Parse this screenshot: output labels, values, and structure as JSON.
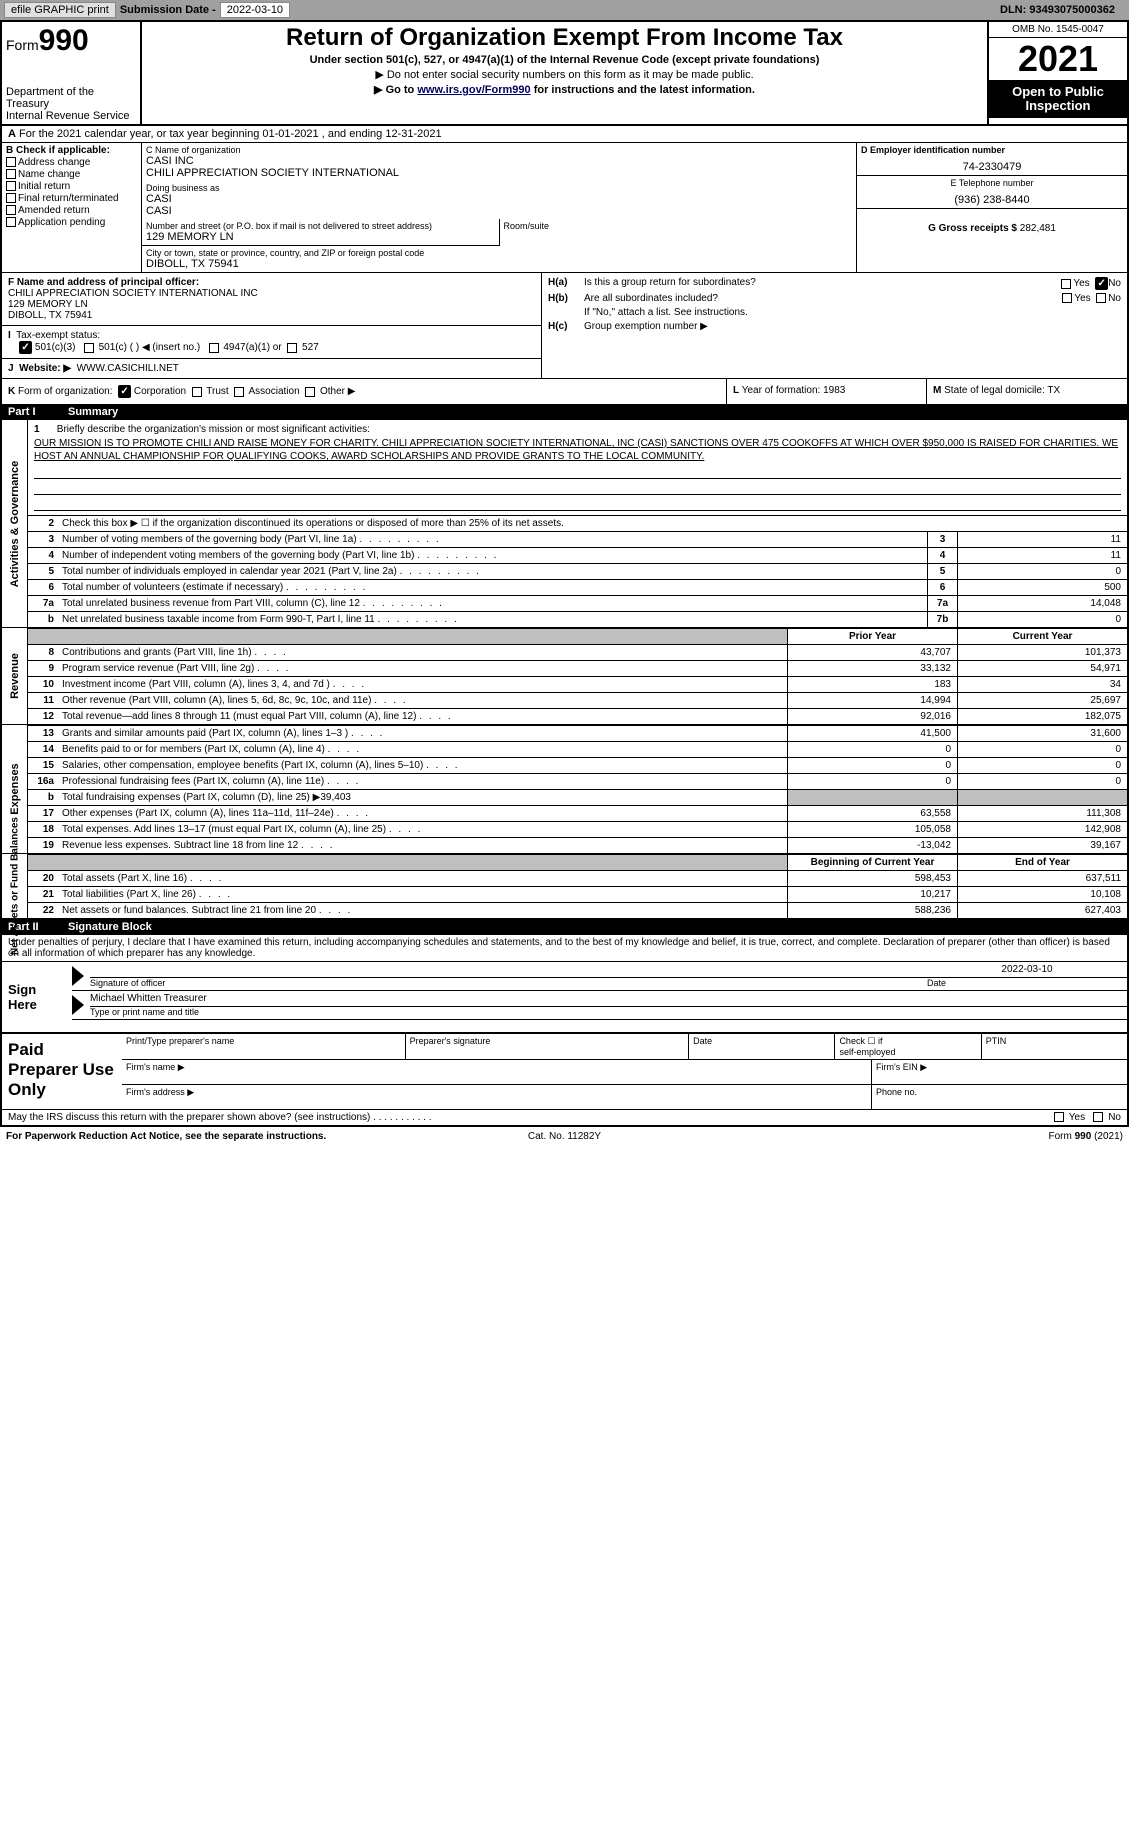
{
  "topbar": {
    "efile_label": "efile GRAPHIC print",
    "submission_label": "Submission Date -",
    "submission_date": "2022-03-10",
    "dln_label": "DLN:",
    "dln_value": "93493075000362"
  },
  "header": {
    "form_word": "Form",
    "form_num": "990",
    "dept1": "Department of the Treasury",
    "dept2": "Internal Revenue Service",
    "title": "Return of Organization Exempt From Income Tax",
    "sub1": "Under section 501(c), 527, or 4947(a)(1) of the Internal Revenue Code (except private foundations)",
    "sub2_pre": "▶ Do not enter social security numbers on this form as it may be made public.",
    "sub3_pre": "▶ Go to ",
    "sub3_link": "www.irs.gov/Form990",
    "sub3_post": " for instructions and the latest information.",
    "omb": "OMB No. 1545-0047",
    "year": "2021",
    "inspect1": "Open to Public",
    "inspect2": "Inspection"
  },
  "row_a": {
    "prefix": "A",
    "text": "For the 2021 calendar year, or tax year beginning 01-01-2021    , and ending 12-31-2021"
  },
  "b": {
    "hdr": "B Check if applicable:",
    "opts": [
      "Address change",
      "Name change",
      "Initial return",
      "Final return/terminated",
      "Amended return",
      "Application pending"
    ]
  },
  "c": {
    "name_lbl": "C Name of organization",
    "name1": "CASI INC",
    "name2": "CHILI APPRECIATION SOCIETY INTERNATIONAL",
    "dba_lbl": "Doing business as",
    "dba1": "CASI",
    "dba2": "CASI",
    "street_lbl": "Number and street (or P.O. box if mail is not delivered to street address)",
    "room_lbl": "Room/suite",
    "street": "129 MEMORY LN",
    "city_lbl": "City or town, state or province, country, and ZIP or foreign postal code",
    "city": "DIBOLL, TX  75941"
  },
  "d": {
    "lbl": "D Employer identification number",
    "val": "74-2330479"
  },
  "e": {
    "lbl": "E Telephone number",
    "val": "(936) 238-8440"
  },
  "g": {
    "lbl": "G Gross receipts $",
    "val": "282,481"
  },
  "f": {
    "lbl": "F Name and address of principal officer:",
    "line1": "CHILI APPRECIATION SOCIETY INTERNATIONAL INC",
    "line2": "129 MEMORY LN",
    "line3": "DIBOLL, TX  75941"
  },
  "h": {
    "a_lbl": "H(a)",
    "a_txt": "Is this a group return for subordinates?",
    "a_yes": "Yes",
    "a_no": "No",
    "b_lbl": "H(b)",
    "b_txt": "Are all subordinates included?",
    "b_yes": "Yes",
    "b_no": "No",
    "b_note": "If \"No,\" attach a list. See instructions.",
    "c_lbl": "H(c)",
    "c_txt": "Group exemption number ▶"
  },
  "i": {
    "lbl": "I",
    "txt": "Tax-exempt status:",
    "o1": "501(c)(3)",
    "o2": "501(c) (  ) ◀ (insert no.)",
    "o3": "4947(a)(1) or",
    "o4": "527"
  },
  "j": {
    "lbl": "J",
    "txt": "Website: ▶",
    "val": "WWW.CASICHILI.NET"
  },
  "k": {
    "lbl": "K",
    "txt": "Form of organization:",
    "o1": "Corporation",
    "o2": "Trust",
    "o3": "Association",
    "o4": "Other ▶"
  },
  "l": {
    "lbl": "L",
    "txt": "Year of formation:",
    "val": "1983"
  },
  "m": {
    "lbl": "M",
    "txt": "State of legal domicile:",
    "val": "TX"
  },
  "part1": {
    "num": "Part I",
    "title": "Summary"
  },
  "mission": {
    "num": "1",
    "lbl": "Briefly describe the organization's mission or most significant activities:",
    "body": "OUR MISSION IS TO PROMOTE CHILI AND RAISE MONEY FOR CHARITY. CHILI APPRECIATION SOCIETY INTERNATIONAL, INC (CASI) SANCTIONS OVER 475 COOKOFFS AT WHICH OVER $950,000 IS RAISED FOR CHARITIES. WE HOST AN ANNUAL CHAMPIONSHIP FOR QUALIFYING COOKS, AWARD SCHOLARSHIPS AND PROVIDE GRANTS TO THE LOCAL COMMUNITY."
  },
  "tabs": {
    "gov": "Activities & Governance",
    "rev": "Revenue",
    "exp": "Expenses",
    "nab": "Net Assets or Fund Balances"
  },
  "lines_gov": [
    {
      "n": "2",
      "d": "Check this box ▶ ☐  if the organization discontinued its operations or disposed of more than 25% of its net assets."
    },
    {
      "n": "3",
      "d": "Number of voting members of the governing body (Part VI, line 1a)",
      "box": "3",
      "v": "11"
    },
    {
      "n": "4",
      "d": "Number of independent voting members of the governing body (Part VI, line 1b)",
      "box": "4",
      "v": "11"
    },
    {
      "n": "5",
      "d": "Total number of individuals employed in calendar year 2021 (Part V, line 2a)",
      "box": "5",
      "v": "0"
    },
    {
      "n": "6",
      "d": "Total number of volunteers (estimate if necessary)",
      "box": "6",
      "v": "500"
    },
    {
      "n": "7a",
      "d": "Total unrelated business revenue from Part VIII, column (C), line 12",
      "box": "7a",
      "v": "14,048"
    },
    {
      "n": "b",
      "d": "Net unrelated business taxable income from Form 990-T, Part I, line 11",
      "box": "7b",
      "v": "0"
    }
  ],
  "col_hdrs": {
    "prior": "Prior Year",
    "curr": "Current Year"
  },
  "lines_rev": [
    {
      "n": "8",
      "d": "Contributions and grants (Part VIII, line 1h)",
      "p": "43,707",
      "c": "101,373"
    },
    {
      "n": "9",
      "d": "Program service revenue (Part VIII, line 2g)",
      "p": "33,132",
      "c": "54,971"
    },
    {
      "n": "10",
      "d": "Investment income (Part VIII, column (A), lines 3, 4, and 7d )",
      "p": "183",
      "c": "34"
    },
    {
      "n": "11",
      "d": "Other revenue (Part VIII, column (A), lines 5, 6d, 8c, 9c, 10c, and 11e)",
      "p": "14,994",
      "c": "25,697"
    },
    {
      "n": "12",
      "d": "Total revenue—add lines 8 through 11 (must equal Part VIII, column (A), line 12)",
      "p": "92,016",
      "c": "182,075"
    }
  ],
  "lines_exp": [
    {
      "n": "13",
      "d": "Grants and similar amounts paid (Part IX, column (A), lines 1–3 )",
      "p": "41,500",
      "c": "31,600"
    },
    {
      "n": "14",
      "d": "Benefits paid to or for members (Part IX, column (A), line 4)",
      "p": "0",
      "c": "0"
    },
    {
      "n": "15",
      "d": "Salaries, other compensation, employee benefits (Part IX, column (A), lines 5–10)",
      "p": "0",
      "c": "0"
    },
    {
      "n": "16a",
      "d": "Professional fundraising fees (Part IX, column (A), line 11e)",
      "p": "0",
      "c": "0"
    },
    {
      "n": "b",
      "d": "Total fundraising expenses (Part IX, column (D), line 25) ▶39,403",
      "gray": true
    },
    {
      "n": "17",
      "d": "Other expenses (Part IX, column (A), lines 11a–11d, 11f–24e)",
      "p": "63,558",
      "c": "111,308"
    },
    {
      "n": "18",
      "d": "Total expenses. Add lines 13–17 (must equal Part IX, column (A), line 25)",
      "p": "105,058",
      "c": "142,908"
    },
    {
      "n": "19",
      "d": "Revenue less expenses. Subtract line 18 from line 12",
      "p": "-13,042",
      "c": "39,167"
    }
  ],
  "col_hdrs2": {
    "beg": "Beginning of Current Year",
    "end": "End of Year"
  },
  "lines_nab": [
    {
      "n": "20",
      "d": "Total assets (Part X, line 16)",
      "p": "598,453",
      "c": "637,511"
    },
    {
      "n": "21",
      "d": "Total liabilities (Part X, line 26)",
      "p": "10,217",
      "c": "10,108"
    },
    {
      "n": "22",
      "d": "Net assets or fund balances. Subtract line 21 from line 20",
      "p": "588,236",
      "c": "627,403"
    }
  ],
  "part2": {
    "num": "Part II",
    "title": "Signature Block"
  },
  "penalties": "Under penalties of perjury, I declare that I have examined this return, including accompanying schedules and statements, and to the best of my knowledge and belief, it is true, correct, and complete. Declaration of preparer (other than officer) is based on all information of which preparer has any knowledge.",
  "sign": {
    "here": "Sign Here",
    "sig_lbl": "Signature of officer",
    "date_lbl": "Date",
    "date_val": "2022-03-10",
    "name_val": "Michael Whitten Treasurer",
    "name_lbl": "Type or print name and title"
  },
  "prep": {
    "left": "Paid Preparer Use Only",
    "r1c1": "Print/Type preparer's name",
    "r1c2": "Preparer's signature",
    "r1c3": "Date",
    "r1c4a": "Check ☐ if",
    "r1c4b": "self-employed",
    "r1c5": "PTIN",
    "r2c1": "Firm's name  ▶",
    "r2c2": "Firm's EIN ▶",
    "r3c1": "Firm's address ▶",
    "r3c2": "Phone no."
  },
  "discuss": {
    "txt": "May the IRS discuss this return with the preparer shown above? (see instructions)",
    "yes": "Yes",
    "no": "No"
  },
  "bottom": {
    "l": "For Paperwork Reduction Act Notice, see the separate instructions.",
    "m": "Cat. No. 11282Y",
    "r": "Form 990 (2021)"
  },
  "colors": {
    "topbar_bg": "#a0a0a0",
    "gray_fill": "#bfbfbf",
    "black": "#000000",
    "link": "#0000aa"
  }
}
